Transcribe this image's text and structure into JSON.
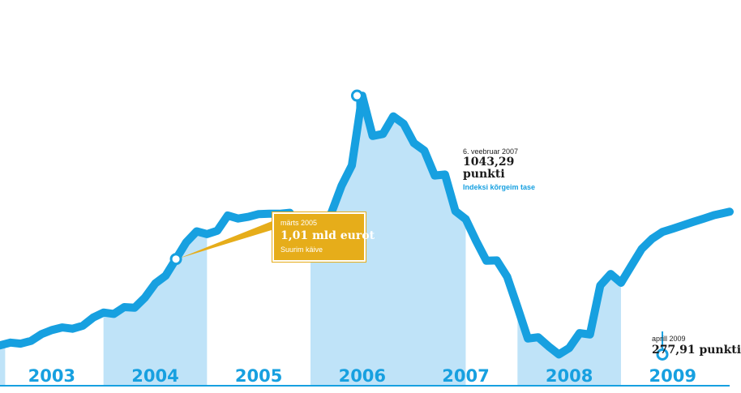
{
  "chart_data": {
    "type": "area",
    "title": "",
    "xlabel": "",
    "ylabel": "",
    "x_domain": [
      2002.5,
      2009.55
    ],
    "ylim": [
      200,
      1120
    ],
    "years": [
      "2003",
      "2004",
      "2005",
      "2006",
      "2007",
      "2008",
      "2009"
    ],
    "shaded_years": [
      "2004",
      "2006",
      "2008"
    ],
    "colors": {
      "line": "#17a0e0",
      "fill": "#bfe3f8",
      "box": "#e6ad1a",
      "axis": "#17a0e0"
    },
    "series": [
      {
        "x": [
          2002.5,
          2002.6,
          2002.7,
          2002.8,
          2002.9,
          2003.0,
          2003.1,
          2003.2,
          2003.3,
          2003.4,
          2003.5,
          2003.6,
          2003.7,
          2003.8,
          2003.9,
          2004.0,
          2004.1,
          2004.2,
          2004.3,
          2004.4,
          2004.5,
          2004.6,
          2004.7,
          2004.8,
          2004.9,
          2005.0,
          2005.1,
          2005.2,
          2005.3,
          2005.4,
          2005.5,
          2005.6,
          2005.7,
          2005.8,
          2005.9,
          2006.0,
          2006.1,
          2006.2,
          2006.3,
          2006.4,
          2006.5,
          2006.6,
          2006.7,
          2006.8,
          2006.9,
          2007.0,
          2007.1,
          2007.2,
          2007.3,
          2007.4,
          2007.5,
          2007.6,
          2007.7,
          2007.8,
          2007.9,
          2008.0,
          2008.1,
          2008.2,
          2008.3,
          2008.4,
          2008.5,
          2008.6,
          2008.7,
          2008.8,
          2008.9,
          2009.0,
          2009.1,
          2009.2,
          2009.3,
          2009.4,
          2009.55
        ],
        "y": [
          305,
          313,
          310,
          318,
          338,
          350,
          358,
          354,
          363,
          387,
          402,
          398,
          418,
          416,
          446,
          488,
          511,
          560,
          610,
          642,
          634,
          644,
          689,
          680,
          685,
          693,
          694,
          694,
          697,
          652,
          641,
          666,
          695,
          777,
          837,
          1043,
          924,
          930,
          982,
          960,
          903,
          881,
          807,
          810,
          702,
          678,
          614,
          555,
          556,
          508,
          418,
          325,
          329,
          302,
          278,
          297,
          341,
          337,
          482,
          516,
          490,
          540,
          590,
          620,
          640,
          650,
          660,
          670,
          680,
          690,
          700
        ]
      }
    ],
    "annotations": [
      {
        "x": 2005.95,
        "y": 1043.29,
        "date": "6. veebruar 2007",
        "value": "1043,29",
        "unit": "punkti",
        "note": "Indeksi kõrgeim tase"
      },
      {
        "x": 2004.2,
        "y": 560,
        "date": "märts 2005",
        "value": "1,01 mld eurot",
        "note": "Suurim käive"
      },
      {
        "x": 2008.9,
        "y": 277.91,
        "date": "aprill 2009",
        "value": "277,91 punkti"
      }
    ]
  }
}
